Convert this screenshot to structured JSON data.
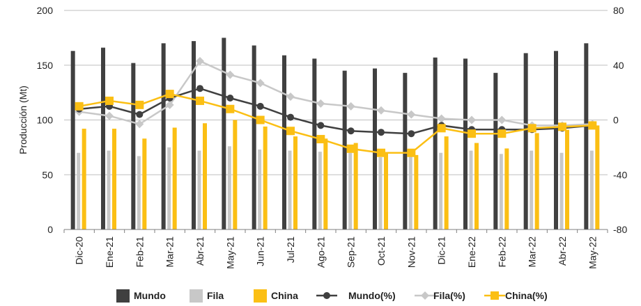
{
  "chart_data": {
    "type": "bar",
    "categories": [
      "Dic-20",
      "Ene-21",
      "Feb-21",
      "Mar-21",
      "Abr-21",
      "May-21",
      "Jun-21",
      "Jul-21",
      "Ago-21",
      "Sep-21",
      "Oct-21",
      "Nov-21",
      "Dic-21",
      "Ene-22",
      "Feb-22",
      "Mar-22",
      "Abr-22",
      "May-22"
    ],
    "ylabel": "Producción (Mt)",
    "ylim": [
      0,
      200
    ],
    "y_ticks": [
      "0",
      "50",
      "100",
      "150",
      "200"
    ],
    "y2lim": [
      -80,
      80
    ],
    "y2_ticks": [
      "-80",
      "-40",
      "0",
      "40",
      "80"
    ],
    "grid": "horizontal",
    "legend_position": "bottom",
    "bar_series": [
      {
        "name": "Mundo",
        "color": "#404040",
        "values": [
          163,
          166,
          152,
          170,
          172,
          175,
          168,
          159,
          156,
          145,
          147,
          143,
          157,
          156,
          143,
          161,
          163,
          170
        ]
      },
      {
        "name": "Fila",
        "color": "#c8c8c8",
        "values": [
          70,
          72,
          67,
          75,
          72,
          76,
          73,
          72,
          71,
          70,
          66,
          68,
          70,
          72,
          69,
          72,
          70,
          72
        ]
      },
      {
        "name": "China",
        "color": "#fbbf14",
        "values": [
          92,
          92,
          83,
          93,
          97,
          100,
          94,
          85,
          83,
          79,
          70,
          68,
          85,
          79,
          74,
          88,
          91,
          95
        ]
      }
    ],
    "line_series": [
      {
        "name": "Mundo(%)",
        "color": "#404040",
        "marker": "circle",
        "values": [
          8,
          10,
          4,
          16,
          23,
          16,
          10,
          2,
          -4,
          -8,
          -9,
          -10,
          -4,
          -7,
          -7,
          -7,
          -6,
          -4
        ]
      },
      {
        "name": "Fila(%)",
        "color": "#c8c8c8",
        "marker": "diamond",
        "values": [
          6,
          3,
          -3,
          11,
          43,
          33,
          27,
          17,
          12,
          10,
          7,
          4,
          1,
          0,
          0,
          -4,
          -4,
          -3
        ]
      },
      {
        "name": "China(%)",
        "color": "#fbbf14",
        "marker": "square",
        "values": [
          10,
          14,
          11,
          19,
          14,
          8,
          0,
          -8,
          -14,
          -21,
          -24,
          -24,
          -6,
          -10,
          -10,
          -6,
          -5,
          -4
        ]
      }
    ]
  }
}
